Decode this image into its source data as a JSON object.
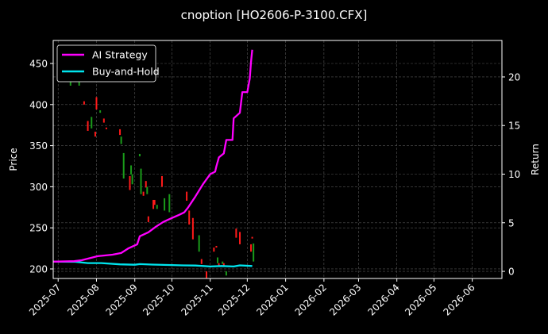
{
  "chart_data": {
    "type": "line",
    "title": "cnoption [HO2606-P-3100.CFX]",
    "xlabel": "",
    "ylabel": "Price",
    "ylabel_right": "Return",
    "xlim": [
      "2025-06-27",
      "2026-06-25"
    ],
    "ylim": [
      188.4,
      478
    ],
    "ylim_right": [
      -0.73,
      23.75
    ],
    "grid": true,
    "legend_position": "top-left",
    "x_ticks": [
      "2025-07",
      "2025-08",
      "2025-09",
      "2025-10",
      "2025-11",
      "2025-12",
      "2026-01",
      "2026-02",
      "2026-03",
      "2026-04",
      "2026-05",
      "2026-06"
    ],
    "y_ticks": [
      200,
      250,
      300,
      350,
      400,
      450
    ],
    "y_ticks_right": [
      0,
      5,
      10,
      15,
      20
    ],
    "colors": {
      "up": "#1a9b1a",
      "down": "#ff1a1a",
      "strategy": "#ff00ff",
      "buyhold": "#00e5ee",
      "grid": "#555555",
      "axis": "#ffffff"
    },
    "candles": [
      [
        "2025-07-11",
        423,
        428
      ],
      [
        "2025-07-18",
        423,
        428
      ],
      [
        "2025-07-22",
        404,
        400
      ],
      [
        "2025-07-25",
        380,
        368
      ],
      [
        "2025-07-28",
        371,
        385
      ],
      [
        "2025-07-31",
        367,
        361
      ],
      [
        "2025-08-01",
        409,
        394
      ],
      [
        "2025-08-04",
        390,
        393
      ],
      [
        "2025-08-07",
        383,
        378
      ],
      [
        "2025-08-09",
        372,
        370
      ],
      [
        "2025-08-20",
        370,
        363
      ],
      [
        "2025-08-21",
        352,
        361
      ],
      [
        "2025-08-23",
        310,
        341
      ],
      [
        "2025-08-28",
        313,
        296
      ],
      [
        "2025-08-29",
        315,
        326
      ],
      [
        "2025-08-30",
        303,
        315
      ],
      [
        "2025-09-05",
        337,
        340
      ],
      [
        "2025-09-06",
        291,
        322
      ],
      [
        "2025-09-08",
        294,
        289
      ],
      [
        "2025-09-10",
        307,
        299
      ],
      [
        "2025-09-11",
        291,
        300
      ],
      [
        "2025-09-12",
        264,
        257
      ],
      [
        "2025-09-16",
        284,
        273
      ],
      [
        "2025-09-17",
        284,
        278
      ],
      [
        "2025-09-19",
        273,
        278
      ],
      [
        "2025-09-23",
        313,
        300
      ],
      [
        "2025-09-25",
        271,
        286
      ],
      [
        "2025-09-29",
        269,
        291
      ],
      [
        "2025-10-13",
        294,
        283
      ],
      [
        "2025-10-15",
        271,
        254
      ],
      [
        "2025-10-18",
        262,
        236
      ],
      [
        "2025-10-23",
        221,
        241
      ],
      [
        "2025-10-25",
        212,
        206
      ],
      [
        "2025-10-29",
        197,
        189
      ],
      [
        "2025-11-04",
        226,
        221
      ],
      [
        "2025-11-06",
        228,
        226
      ],
      [
        "2025-11-07",
        207,
        214
      ],
      [
        "2025-11-08",
        207,
        204
      ],
      [
        "2025-11-11",
        206,
        209
      ],
      [
        "2025-11-12",
        207,
        204
      ],
      [
        "2025-11-14",
        192,
        197
      ],
      [
        "2025-11-22",
        249,
        238
      ],
      [
        "2025-11-25",
        245,
        230
      ],
      [
        "2025-12-04",
        230,
        221
      ],
      [
        "2025-12-05",
        239,
        237
      ],
      [
        "2025-12-06",
        209,
        231
      ]
    ],
    "series": [
      {
        "name": "AI Strategy",
        "axis": "right",
        "points": [
          [
            "2025-06-27",
            1.0
          ],
          [
            "2025-07-14",
            1.05
          ],
          [
            "2025-07-20",
            1.15
          ],
          [
            "2025-08-02",
            1.56
          ],
          [
            "2025-08-14",
            1.72
          ],
          [
            "2025-08-21",
            1.89
          ],
          [
            "2025-08-27",
            2.38
          ],
          [
            "2025-09-03",
            2.79
          ],
          [
            "2025-09-05",
            3.61
          ],
          [
            "2025-09-12",
            4.02
          ],
          [
            "2025-09-18",
            4.59
          ],
          [
            "2025-09-24",
            5.08
          ],
          [
            "2025-10-01",
            5.49
          ],
          [
            "2025-10-07",
            5.82
          ],
          [
            "2025-10-11",
            6.07
          ],
          [
            "2025-10-14",
            6.56
          ],
          [
            "2025-10-20",
            7.7
          ],
          [
            "2025-10-26",
            8.93
          ],
          [
            "2025-11-01",
            10.0
          ],
          [
            "2025-11-05",
            10.25
          ],
          [
            "2025-11-06",
            10.82
          ],
          [
            "2025-11-08",
            11.72
          ],
          [
            "2025-11-12",
            12.13
          ],
          [
            "2025-11-14",
            13.52
          ],
          [
            "2025-11-19",
            13.52
          ],
          [
            "2025-11-20",
            15.74
          ],
          [
            "2025-11-25",
            16.31
          ],
          [
            "2025-11-27",
            18.44
          ],
          [
            "2025-12-01",
            18.44
          ],
          [
            "2025-12-03",
            19.84
          ],
          [
            "2025-12-04",
            21.48
          ],
          [
            "2025-12-05",
            22.79
          ]
        ]
      },
      {
        "name": "Buy-and-Hold",
        "axis": "right",
        "points": [
          [
            "2025-06-27",
            1.0
          ],
          [
            "2025-07-15",
            0.98
          ],
          [
            "2025-07-25",
            0.85
          ],
          [
            "2025-08-05",
            0.85
          ],
          [
            "2025-08-20",
            0.72
          ],
          [
            "2025-09-01",
            0.68
          ],
          [
            "2025-09-05",
            0.75
          ],
          [
            "2025-09-15",
            0.7
          ],
          [
            "2025-10-01",
            0.65
          ],
          [
            "2025-10-10",
            0.62
          ],
          [
            "2025-10-20",
            0.6
          ],
          [
            "2025-11-01",
            0.5
          ],
          [
            "2025-11-10",
            0.55
          ],
          [
            "2025-11-20",
            0.5
          ],
          [
            "2025-11-25",
            0.62
          ],
          [
            "2025-12-05",
            0.55
          ]
        ]
      }
    ]
  }
}
